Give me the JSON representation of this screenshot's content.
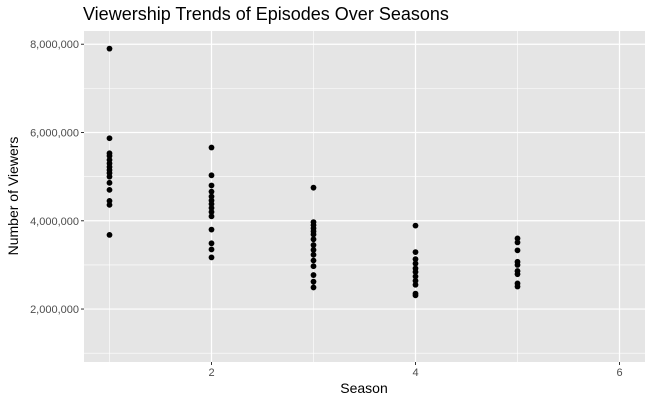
{
  "chart_data": {
    "type": "scatter",
    "title": "Viewership Trends of Episodes Over Seasons",
    "xlabel": "Season",
    "ylabel": "Number of Viewers",
    "xlim": [
      0.75,
      6.25
    ],
    "ylim": [
      800000,
      8300000
    ],
    "x_ticks": [
      2,
      4,
      6
    ],
    "x_tick_labels": [
      "2",
      "4",
      "6"
    ],
    "y_ticks": [
      2000000,
      4000000,
      6000000,
      8000000
    ],
    "y_tick_labels": [
      "2,000,000",
      "4,000,000",
      "6,000,000",
      "8,000,000"
    ],
    "grid": true,
    "legend": "none",
    "colors": {
      "panel": "#e5e5e5",
      "grid": "#ffffff",
      "point": "#000000"
    },
    "points": [
      {
        "x": 1,
        "y": 7900000
      },
      {
        "x": 1,
        "y": 5870000
      },
      {
        "x": 1,
        "y": 5530000
      },
      {
        "x": 1,
        "y": 5470000
      },
      {
        "x": 1,
        "y": 5380000
      },
      {
        "x": 1,
        "y": 5300000
      },
      {
        "x": 1,
        "y": 5220000
      },
      {
        "x": 1,
        "y": 5150000
      },
      {
        "x": 1,
        "y": 5080000
      },
      {
        "x": 1,
        "y": 5000000
      },
      {
        "x": 1,
        "y": 4860000
      },
      {
        "x": 1,
        "y": 4700000
      },
      {
        "x": 1,
        "y": 4450000
      },
      {
        "x": 1,
        "y": 4360000
      },
      {
        "x": 1,
        "y": 3680000
      },
      {
        "x": 2,
        "y": 5660000
      },
      {
        "x": 2,
        "y": 5030000
      },
      {
        "x": 2,
        "y": 4800000
      },
      {
        "x": 2,
        "y": 4660000
      },
      {
        "x": 2,
        "y": 4550000
      },
      {
        "x": 2,
        "y": 4460000
      },
      {
        "x": 2,
        "y": 4380000
      },
      {
        "x": 2,
        "y": 4290000
      },
      {
        "x": 2,
        "y": 4200000
      },
      {
        "x": 2,
        "y": 4100000
      },
      {
        "x": 2,
        "y": 3800000
      },
      {
        "x": 2,
        "y": 3490000
      },
      {
        "x": 2,
        "y": 3350000
      },
      {
        "x": 2,
        "y": 3170000
      },
      {
        "x": 3,
        "y": 4750000
      },
      {
        "x": 3,
        "y": 3970000
      },
      {
        "x": 3,
        "y": 3900000
      },
      {
        "x": 3,
        "y": 3830000
      },
      {
        "x": 3,
        "y": 3760000
      },
      {
        "x": 3,
        "y": 3690000
      },
      {
        "x": 3,
        "y": 3580000
      },
      {
        "x": 3,
        "y": 3450000
      },
      {
        "x": 3,
        "y": 3340000
      },
      {
        "x": 3,
        "y": 3230000
      },
      {
        "x": 3,
        "y": 3100000
      },
      {
        "x": 3,
        "y": 2970000
      },
      {
        "x": 3,
        "y": 2770000
      },
      {
        "x": 3,
        "y": 2620000
      },
      {
        "x": 3,
        "y": 2490000
      },
      {
        "x": 4,
        "y": 3890000
      },
      {
        "x": 4,
        "y": 3290000
      },
      {
        "x": 4,
        "y": 3130000
      },
      {
        "x": 4,
        "y": 3030000
      },
      {
        "x": 4,
        "y": 2920000
      },
      {
        "x": 4,
        "y": 2840000
      },
      {
        "x": 4,
        "y": 2740000
      },
      {
        "x": 4,
        "y": 2640000
      },
      {
        "x": 4,
        "y": 2550000
      },
      {
        "x": 4,
        "y": 2350000
      },
      {
        "x": 4,
        "y": 2310000
      },
      {
        "x": 5,
        "y": 3600000
      },
      {
        "x": 5,
        "y": 3510000
      },
      {
        "x": 5,
        "y": 3330000
      },
      {
        "x": 5,
        "y": 3070000
      },
      {
        "x": 5,
        "y": 3000000
      },
      {
        "x": 5,
        "y": 2860000
      },
      {
        "x": 5,
        "y": 2790000
      },
      {
        "x": 5,
        "y": 2580000
      },
      {
        "x": 5,
        "y": 2510000
      }
    ]
  }
}
